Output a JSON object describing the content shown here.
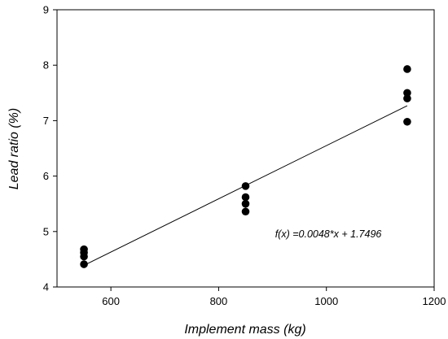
{
  "chart_data": {
    "type": "scatter",
    "title": "",
    "xlabel": "Implement mass (kg)",
    "ylabel": "Lead ratio (%)",
    "xlim": [
      500,
      1200
    ],
    "ylim": [
      4,
      9
    ],
    "x_ticks": [
      600,
      800,
      1000,
      1200
    ],
    "y_ticks": [
      4,
      5,
      6,
      7,
      8,
      9
    ],
    "grid": false,
    "series": [
      {
        "points": [
          {
            "x": 550,
            "y": 4.68
          },
          {
            "x": 550,
            "y": 4.62
          },
          {
            "x": 550,
            "y": 4.55
          },
          {
            "x": 550,
            "y": 4.41
          },
          {
            "x": 850,
            "y": 5.82
          },
          {
            "x": 850,
            "y": 5.62
          },
          {
            "x": 850,
            "y": 5.5
          },
          {
            "x": 850,
            "y": 5.36
          },
          {
            "x": 1150,
            "y": 7.93
          },
          {
            "x": 1150,
            "y": 7.5
          },
          {
            "x": 1150,
            "y": 7.4
          },
          {
            "x": 1150,
            "y": 6.98
          }
        ],
        "color": "#000000"
      }
    ],
    "fit_line": {
      "slope": 0.0048,
      "intercept": 1.7496,
      "x_range": [
        550,
        1150
      ],
      "color": "#000000"
    },
    "annotations": [
      {
        "text": "f(x) =0.0048*x + 1.7496",
        "x": 1000,
        "y": 4.95
      }
    ]
  }
}
